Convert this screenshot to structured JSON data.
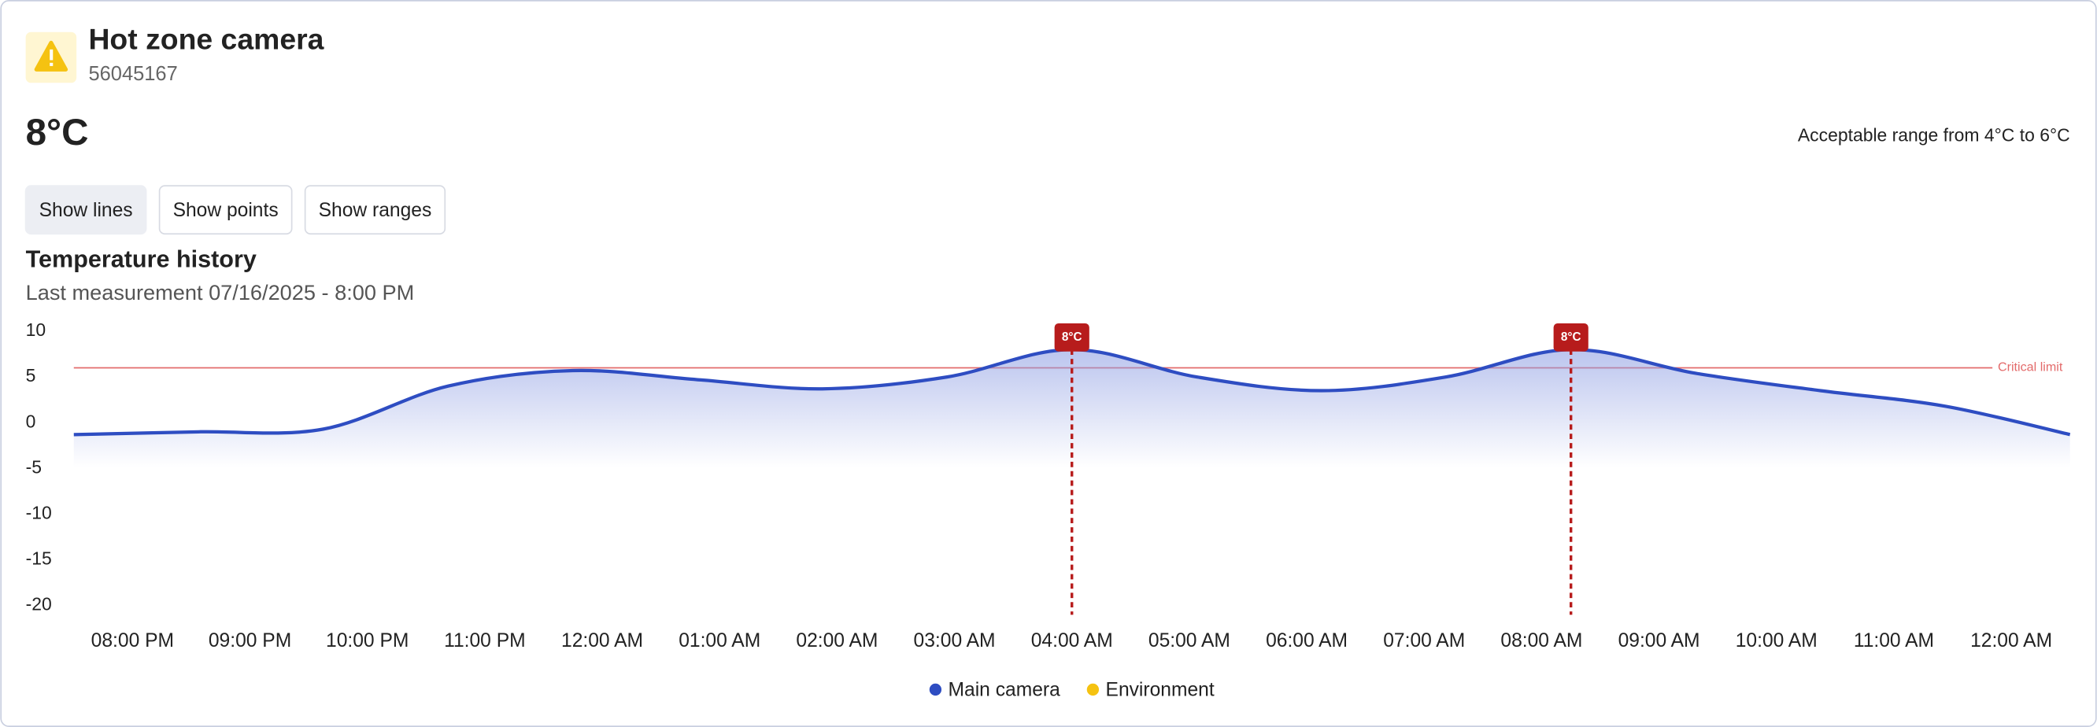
{
  "header": {
    "title": "Hot zone camera",
    "id": "56045167",
    "current": "8°C",
    "range": "Acceptable range from 4°C to 6°C"
  },
  "buttons": [
    "Show lines",
    "Show points",
    "Show ranges"
  ],
  "chart_data": {
    "type": "line",
    "title": "Temperature history",
    "subtitle": "Last measurement 07/16/2025 - 8:00 PM",
    "categories": [
      "08:00 PM",
      "09:00 PM",
      "10:00 PM",
      "11:00 PM",
      "12:00 AM",
      "01:00 AM",
      "02:00 AM",
      "03:00 AM",
      "04:00 AM",
      "05:00 AM",
      "06:00 AM",
      "07:00 AM",
      "08:00 AM",
      "09:00 AM",
      "10:00 AM",
      "11:00 AM",
      "12:00 AM"
    ],
    "series": [
      {
        "name": "Main camera",
        "color": "#2e4dc2",
        "values": [
          -1.3,
          -1,
          -0.7,
          4,
          5.7,
          4.7,
          3.7,
          5,
          8,
          5,
          3.5,
          5,
          8,
          5.4,
          3.5,
          1.8,
          -1.3
        ],
        "value_labels": [
          null,
          null,
          null,
          null,
          null,
          null,
          null,
          null,
          "8°C",
          null,
          null,
          null,
          "8°C",
          null,
          null,
          null,
          null
        ]
      },
      {
        "name": "Environment",
        "color": "#f5c211",
        "values": [
          null,
          null,
          null,
          null,
          null,
          null,
          null,
          null,
          null,
          null,
          null,
          null,
          null,
          null,
          null,
          null,
          null
        ]
      }
    ],
    "ylim": [
      -21,
      11
    ],
    "yticks": [
      10,
      5,
      0,
      -5,
      -10,
      -15,
      -20
    ],
    "critical_limit": 6,
    "critical_label": "Critical limit",
    "limit_color": "#e36b6b",
    "marker_color": "#b71c1c",
    "legend": "bottom"
  }
}
